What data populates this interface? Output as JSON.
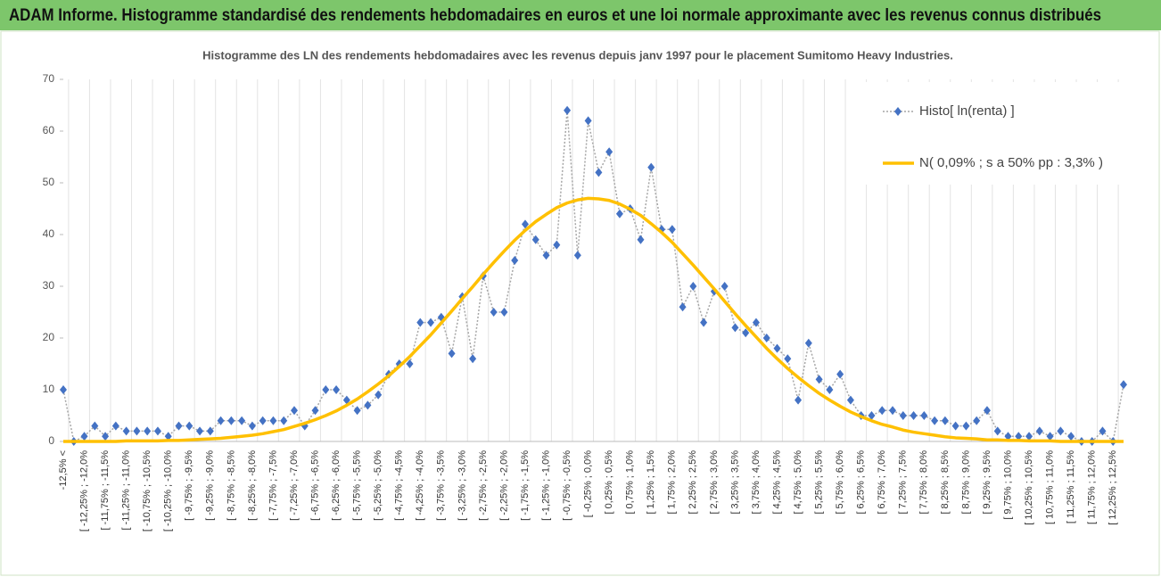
{
  "chart_data": {
    "type": "line",
    "header": "ADAM Informe. Histogramme standardisé des rendements hebdomadaires en euros et une loi normale approximante avec les revenus connus distribués",
    "title": "Histogramme  des LN des rendements hebdomadaires avec les revenus depuis janv 1997 pour le placement Sumitomo Heavy Industries.",
    "categories": [
      "-12,5% <",
      null,
      "[ -12,25% ; -12,0%",
      null,
      "[ -11,75% ; -11,5%",
      null,
      "[ -11,25% ; -11,0%",
      null,
      "[ -10,75% ; -10,5%",
      null,
      "[ -10,25% ; -10,0%",
      null,
      "[ -9,75% ; -9,5%",
      null,
      "[ -9,25% ; -9,0%",
      null,
      "[ -8,75% ; -8,5%",
      null,
      "[ -8,25% ; -8,0%",
      null,
      "[ -7,75% ; -7,5%",
      null,
      "[ -7,25% ; -7,0%",
      null,
      "[ -6,75% ; -6,5%",
      null,
      "[ -6,25% ; -6,0%",
      null,
      "[ -5,75% ; -5,5%",
      null,
      "[ -5,25% ; -5,0%",
      null,
      "[ -4,75% ; -4,5%",
      null,
      "[ -4,25% ; -4,0%",
      null,
      "[ -3,75% ; -3,5%",
      null,
      "[ -3,25% ; -3,0%",
      null,
      "[ -2,75% ; -2,5%",
      null,
      "[ -2,25% ; -2,0%",
      null,
      "[ -1,75% ; -1,5%",
      null,
      "[ -1,25% ; -1,0%",
      null,
      "[ -0,75% ; -0,5%",
      null,
      "[ -0,25% ; 0,0%",
      null,
      "[ 0,25% ; 0,5%",
      null,
      "[ 0,75% ; 1,0%",
      null,
      "[ 1,25% ; 1,5%",
      null,
      "[ 1,75% ; 2,0%",
      null,
      "[ 2,25% ; 2,5%",
      null,
      "[ 2,75% ; 3,0%",
      null,
      "[ 3,25% ; 3,5%",
      null,
      "[ 3,75% ; 4,0%",
      null,
      "[ 4,25% ; 4,5%",
      null,
      "[ 4,75% ; 5,0%",
      null,
      "[ 5,25% ; 5,5%",
      null,
      "[ 5,75% ; 6,0%",
      null,
      "[ 6,25% ; 6,5%",
      null,
      "[ 6,75% ; 7,0%",
      null,
      "[ 7,25% ; 7,5%",
      null,
      "[ 7,75% ; 8,0%",
      null,
      "[ 8,25% ; 8,5%",
      null,
      "[ 8,75% ; 9,0%",
      null,
      "[ 9,25% ; 9,5%",
      null,
      "[ 9,75% ; 10,0%",
      null,
      "[ 10,25% ; 10,5%",
      null,
      "[ 10,75% ; 11,0%",
      null,
      "[ 11,25% ; 11,5%",
      null,
      "[ 11,75% ; 12,0%",
      null,
      "[ 12,25% ; 12,5%",
      null
    ],
    "series": [
      {
        "name": "Histo[ ln(renta) ]",
        "color": "#4472c4",
        "values": [
          10,
          0,
          1,
          3,
          1,
          3,
          2,
          2,
          2,
          2,
          1,
          3,
          3,
          2,
          2,
          4,
          4,
          4,
          3,
          4,
          4,
          4,
          6,
          3,
          6,
          10,
          10,
          8,
          6,
          7,
          9,
          13,
          15,
          15,
          23,
          23,
          24,
          17,
          28,
          16,
          32,
          25,
          25,
          35,
          42,
          39,
          36,
          38,
          64,
          36,
          62,
          52,
          56,
          44,
          45,
          39,
          53,
          41,
          41,
          26,
          30,
          23,
          29,
          30,
          22,
          21,
          23,
          20,
          18,
          16,
          8,
          19,
          12,
          10,
          13,
          8,
          5,
          5,
          6,
          6,
          5,
          5,
          5,
          4,
          4,
          3,
          3,
          4,
          6,
          2,
          1,
          1,
          1,
          2,
          1,
          2,
          1,
          0,
          0,
          2,
          0,
          11
        ]
      },
      {
        "name": "N( 0,09% ; s a 50% pp : 3,3% )",
        "color": "#ffc000",
        "values": [
          0,
          0,
          0,
          0,
          0,
          0,
          0.1,
          0.1,
          0.1,
          0.1,
          0.2,
          0.2,
          0.3,
          0.4,
          0.5,
          0.6,
          0.8,
          1.0,
          1.2,
          1.5,
          1.9,
          2.3,
          2.9,
          3.5,
          4.2,
          5.0,
          5.9,
          7.0,
          8.2,
          9.6,
          11.1,
          12.7,
          14.5,
          16.4,
          18.5,
          20.6,
          22.9,
          25.2,
          27.6,
          29.9,
          32.3,
          34.6,
          36.8,
          38.9,
          40.8,
          42.5,
          43.9,
          45.2,
          46.1,
          46.7,
          47.0,
          46.9,
          46.6,
          45.9,
          44.9,
          43.7,
          42.1,
          40.4,
          38.5,
          36.3,
          34.1,
          31.8,
          29.5,
          27.1,
          24.7,
          22.4,
          20.2,
          18.0,
          16.0,
          14.1,
          12.4,
          10.8,
          9.3,
          8.0,
          6.8,
          5.7,
          4.8,
          4.0,
          3.3,
          2.8,
          2.2,
          1.8,
          1.5,
          1.2,
          0.9,
          0.7,
          0.6,
          0.5,
          0.3,
          0.3,
          0.2,
          0.2,
          0.1,
          0.1,
          0.1,
          0,
          0,
          0,
          0,
          0,
          0,
          0
        ]
      }
    ],
    "ylim": [
      0,
      70
    ],
    "yticks": [
      0,
      10,
      20,
      30,
      40,
      50,
      60,
      70
    ],
    "legend": "top-right"
  }
}
